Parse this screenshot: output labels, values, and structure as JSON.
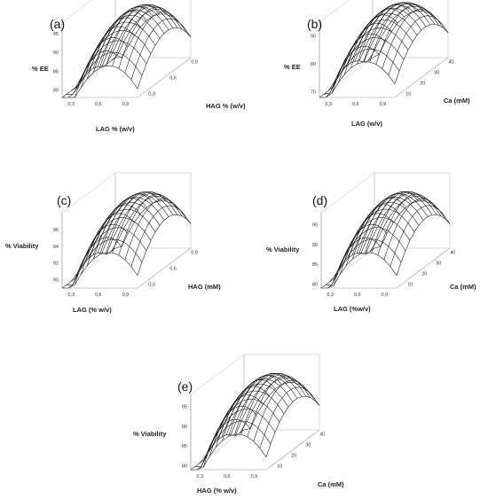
{
  "chart_data": [
    {
      "type": "surface",
      "panel_label": "(a)",
      "zlabel": "% EE",
      "xlabel": "LAG % (w/v)",
      "ylabel": "HAG % (w/v)",
      "z_ticks": [
        "80",
        "85",
        "90",
        "95"
      ],
      "x_ticks": [
        "0,3",
        "0,6",
        "0,9"
      ],
      "y_ticks": [
        "0,3",
        "0,6",
        "0,9"
      ],
      "zlim": [
        78,
        98
      ],
      "surface": {
        "peak": 96,
        "base": 78
      }
    },
    {
      "type": "surface",
      "panel_label": "(b)",
      "zlabel": "% EE",
      "xlabel": "LAG (w/v)",
      "ylabel": "Ca (mM)",
      "z_ticks": [
        "70",
        "80",
        "90"
      ],
      "x_ticks": [
        "0,3",
        "0,6",
        "0,9"
      ],
      "y_ticks": [
        "10",
        "20",
        "30",
        "40"
      ],
      "zlim": [
        68,
        95
      ],
      "surface": {
        "peak": 93,
        "base": 70
      }
    },
    {
      "type": "surface",
      "panel_label": "(c)",
      "zlabel": "% Viability",
      "xlabel": "LAG (% w/v)",
      "ylabel": "HAG (mM)",
      "z_ticks": [
        "90",
        "92",
        "94",
        "96"
      ],
      "x_ticks": [
        "0,3",
        "0,6",
        "0,9"
      ],
      "y_ticks": [
        "0,3",
        "0,6",
        "0,9"
      ],
      "zlim": [
        89,
        98
      ],
      "surface": {
        "peak": 97.5,
        "base": 89.5
      }
    },
    {
      "type": "surface",
      "panel_label": "(d)",
      "zlabel": "% Viability",
      "xlabel": "LAG (%w/v)",
      "ylabel": "Ca (mM)",
      "z_ticks": [
        "80",
        "85",
        "90",
        "95"
      ],
      "x_ticks": [
        "0,3",
        "0,6",
        "0,9"
      ],
      "y_ticks": [
        "10",
        "20",
        "30",
        "40"
      ],
      "zlim": [
        79,
        98
      ],
      "surface": {
        "peak": 97,
        "base": 80
      }
    },
    {
      "type": "surface",
      "panel_label": "(e)",
      "zlabel": "% Viability",
      "xlabel": "HAG (% w/v)",
      "ylabel": "Ca (mM)",
      "z_ticks": [
        "80",
        "85",
        "90",
        "95"
      ],
      "x_ticks": [
        "0,3",
        "0,6",
        "0,9"
      ],
      "y_ticks": [
        "10",
        "20",
        "30",
        "40"
      ],
      "zlim": [
        79,
        98
      ],
      "surface": {
        "peak": 97,
        "base": 80
      }
    }
  ]
}
